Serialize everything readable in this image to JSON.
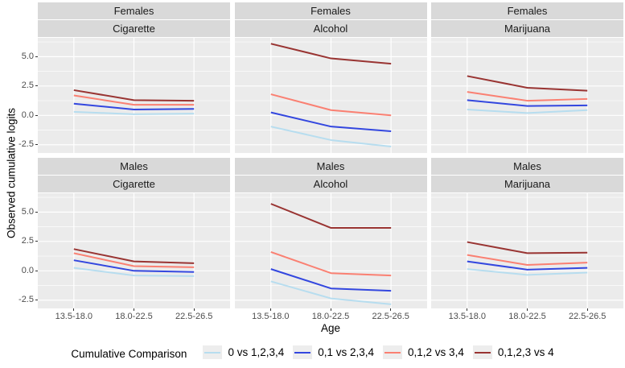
{
  "chart_data": {
    "type": "line",
    "ylabel": "Observed cumulative logits",
    "xlabel": "Age",
    "legend_title": "Cumulative Comparison",
    "facet_rows": [
      "Females",
      "Males"
    ],
    "facet_cols": [
      "Cigarette",
      "Alcohol",
      "Marijuana"
    ],
    "x_categories": [
      "13.5-18.0",
      "18.0-22.5",
      "22.5-26.5"
    ],
    "y_ticks": [
      "5.0",
      "2.5",
      "0.0",
      "-2.5"
    ],
    "y_tick_values": [
      5.0,
      2.5,
      0.0,
      -2.5
    ],
    "y_minor_values": [
      6.25,
      3.75,
      1.25,
      -1.25
    ],
    "ylim": [
      -3.2,
      6.6
    ],
    "grid": true,
    "legend_position": "bottom",
    "series": [
      {
        "name": "0 vs 1,2,3,4",
        "color": "#B7DDEF"
      },
      {
        "name": "0,1 vs 2,3,4",
        "color": "#3347DF"
      },
      {
        "name": "0,1,2 vs 3,4",
        "color": "#FA8072"
      },
      {
        "name": "0,1,2,3 vs 4",
        "color": "#993432"
      }
    ],
    "panels": [
      {
        "facet_row": "Females",
        "facet_col": "Cigarette",
        "values": [
          [
            0.3,
            0.1,
            0.15
          ],
          [
            1.0,
            0.5,
            0.55
          ],
          [
            1.7,
            0.9,
            0.9
          ],
          [
            2.15,
            1.3,
            1.25
          ]
        ]
      },
      {
        "facet_row": "Females",
        "facet_col": "Alcohol",
        "values": [
          [
            -0.95,
            -2.1,
            -2.65
          ],
          [
            0.25,
            -0.95,
            -1.35
          ],
          [
            1.8,
            0.45,
            0.0
          ],
          [
            6.1,
            4.85,
            4.4
          ]
        ]
      },
      {
        "facet_row": "Females",
        "facet_col": "Marijuana",
        "values": [
          [
            0.5,
            0.2,
            0.45
          ],
          [
            1.3,
            0.8,
            0.85
          ],
          [
            2.0,
            1.25,
            1.4
          ],
          [
            3.35,
            2.35,
            2.1
          ]
        ]
      },
      {
        "facet_row": "Males",
        "facet_col": "Cigarette",
        "values": [
          [
            0.25,
            -0.4,
            -0.45
          ],
          [
            0.9,
            0.0,
            -0.1
          ],
          [
            1.5,
            0.4,
            0.3
          ],
          [
            1.85,
            0.8,
            0.65
          ]
        ]
      },
      {
        "facet_row": "Males",
        "facet_col": "Alcohol",
        "values": [
          [
            -0.9,
            -2.35,
            -2.85
          ],
          [
            0.15,
            -1.5,
            -1.7
          ],
          [
            1.6,
            -0.2,
            -0.4
          ],
          [
            5.7,
            3.65,
            3.65
          ]
        ]
      },
      {
        "facet_row": "Males",
        "facet_col": "Marijuana",
        "values": [
          [
            0.15,
            -0.35,
            -0.15
          ],
          [
            0.8,
            0.1,
            0.25
          ],
          [
            1.35,
            0.5,
            0.7
          ],
          [
            2.45,
            1.5,
            1.55
          ]
        ]
      }
    ]
  },
  "theme": {
    "panel_bg": "#EBEBEB",
    "strip_bg": "#D9D9D9",
    "grid_color": "#FFFFFF",
    "axis_text_color": "#4D4D4D",
    "tick_color": "#333333",
    "text_color": "#000000",
    "background": "#FFFFFF"
  }
}
